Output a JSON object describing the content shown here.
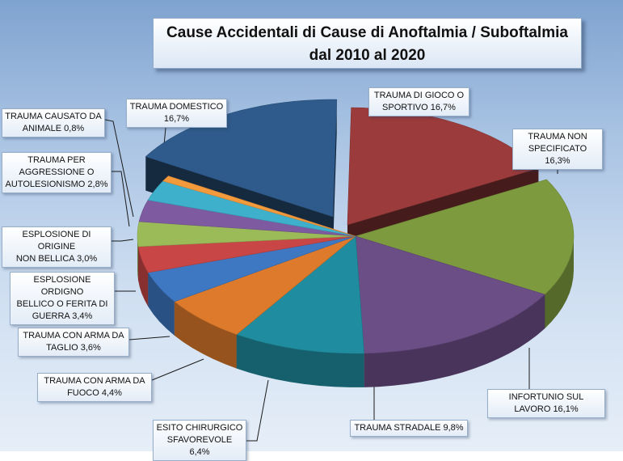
{
  "chart_data": {
    "type": "pie",
    "style": "3d-exploded",
    "title": "Cause Accidentali di Cause di Anoftalmia / Suboftalmia\ndal 2010 al 2020",
    "slices": [
      {
        "name": "TRAUMA  DI GIOCO O\nSPORTIVO",
        "value": 16.7,
        "label": "16,7%",
        "color": "#9b3b3b"
      },
      {
        "name": "TRAUMA  NON\nSPECIFICATO",
        "value": 16.3,
        "label": "16,3%",
        "color": "#7d9a3e"
      },
      {
        "name": "INFORTUNIO SUL LAVORO",
        "value": 16.1,
        "label": "16,1%",
        "color": "#6b4e86"
      },
      {
        "name": "TRAUMA  STRADALE",
        "value": 9.8,
        "label": "9,8%",
        "color": "#1f8d9f"
      },
      {
        "name": "ESITO CHIRURGICO\nSFAVOREVOLE",
        "value": 6.4,
        "label": "6,4%",
        "color": "#dd7a2b"
      },
      {
        "name": "TRAUMA  CON ARMA DA\nFUOCO",
        "value": 4.4,
        "label": "4,4%",
        "color": "#3e77c2"
      },
      {
        "name": "TRAUMA  CON ARMA DA\nTAGLIO",
        "value": 3.6,
        "label": "3,6%",
        "color": "#c84646"
      },
      {
        "name": "ESPLOSIONE ORDIGNO\nBELLICO O FERITA DI\nGUERRA",
        "value": 3.4,
        "label": "3,4%",
        "color": "#9bbb59"
      },
      {
        "name": "ESPLOSIONE DI ORIGINE\nNON BELLICA",
        "value": 3.0,
        "label": "3,0%",
        "color": "#7e5aa0"
      },
      {
        "name": "TRAUMA  PER\nAGGRESSIONE  O\nAUTOLESIONISMO",
        "value": 2.8,
        "label": "2,8%",
        "color": "#3eb0cc"
      },
      {
        "name": "TRAUMA  CAUSATO  DA\nANIMALE",
        "value": 0.8,
        "label": "0,8%",
        "color": "#f39a3c"
      },
      {
        "name": "TRAUMA  DOMESTICO",
        "value": 16.7,
        "label": "16,7%",
        "color": "#2e5b8c"
      }
    ]
  }
}
